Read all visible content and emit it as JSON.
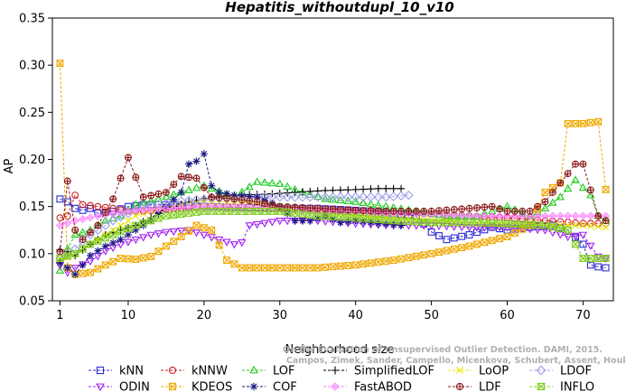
{
  "chart_data": {
    "type": "line",
    "title": "Hepatitis_withoutdupl_10_v10",
    "xlabel": "Neighborhood size",
    "ylabel": "AP",
    "xlim": [
      0,
      74
    ],
    "ylim": [
      0.05,
      0.35
    ],
    "xticks": [
      1,
      10,
      20,
      30,
      40,
      50,
      60,
      70
    ],
    "yticks": [
      "0.05",
      "0.10",
      "0.15",
      "0.20",
      "0.25",
      "0.30",
      "0.35"
    ],
    "grid": false,
    "legend_position": "bottom",
    "watermark": [
      "Campos, Zimek, Sander, Campello, Micenkova, Schubert, Assent, Houle",
      "On the Evaluation of Unsupervised Outlier Detection. DAMI, 2015."
    ],
    "series": [
      {
        "name": "kNN",
        "color": "#2a2ad6",
        "marker": "square",
        "points": [
          [
            1,
            0.158
          ],
          [
            2,
            0.155
          ],
          [
            3,
            0.148
          ],
          [
            4,
            0.146
          ],
          [
            5,
            0.148
          ],
          [
            6,
            0.143
          ],
          [
            8,
            0.145
          ],
          [
            10,
            0.15
          ],
          [
            12,
            0.152
          ],
          [
            15,
            0.152
          ],
          [
            20,
            0.15
          ],
          [
            25,
            0.149
          ],
          [
            30,
            0.148
          ],
          [
            35,
            0.148
          ],
          [
            40,
            0.146
          ],
          [
            45,
            0.143
          ],
          [
            48,
            0.14
          ],
          [
            50,
            0.123
          ],
          [
            52,
            0.115
          ],
          [
            55,
            0.12
          ],
          [
            58,
            0.128
          ],
          [
            60,
            0.125
          ],
          [
            63,
            0.128
          ],
          [
            66,
            0.13
          ],
          [
            68,
            0.125
          ],
          [
            70,
            0.11
          ],
          [
            71,
            0.088
          ],
          [
            72,
            0.086
          ],
          [
            73,
            0.085
          ]
        ]
      },
      {
        "name": "kNNW",
        "color": "#cc2222",
        "marker": "circle",
        "points": [
          [
            1,
            0.138
          ],
          [
            2,
            0.14
          ],
          [
            3,
            0.162
          ],
          [
            4,
            0.152
          ],
          [
            6,
            0.15
          ],
          [
            8,
            0.148
          ],
          [
            10,
            0.145
          ],
          [
            12,
            0.145
          ],
          [
            15,
            0.147
          ],
          [
            20,
            0.15
          ],
          [
            25,
            0.15
          ],
          [
            30,
            0.148
          ],
          [
            35,
            0.146
          ],
          [
            40,
            0.145
          ],
          [
            45,
            0.145
          ],
          [
            50,
            0.142
          ],
          [
            55,
            0.14
          ],
          [
            60,
            0.138
          ],
          [
            65,
            0.135
          ],
          [
            70,
            0.132
          ],
          [
            73,
            0.132
          ]
        ]
      },
      {
        "name": "LOF",
        "color": "#1fcc1f",
        "marker": "triangle",
        "points": [
          [
            1,
            0.082
          ],
          [
            2,
            0.105
          ],
          [
            3,
            0.12
          ],
          [
            5,
            0.125
          ],
          [
            7,
            0.135
          ],
          [
            9,
            0.14
          ],
          [
            11,
            0.152
          ],
          [
            14,
            0.158
          ],
          [
            17,
            0.165
          ],
          [
            20,
            0.172
          ],
          [
            24,
            0.16
          ],
          [
            27,
            0.176
          ],
          [
            30,
            0.174
          ],
          [
            33,
            0.165
          ],
          [
            36,
            0.158
          ],
          [
            40,
            0.155
          ],
          [
            44,
            0.15
          ],
          [
            48,
            0.145
          ],
          [
            52,
            0.14
          ],
          [
            56,
            0.14
          ],
          [
            60,
            0.15
          ],
          [
            63,
            0.14
          ],
          [
            65,
            0.148
          ],
          [
            67,
            0.16
          ],
          [
            69,
            0.178
          ],
          [
            71,
            0.162
          ],
          [
            72,
            0.14
          ],
          [
            73,
            0.135
          ]
        ]
      },
      {
        "name": "SimplifiedLOF",
        "color": "#000000",
        "marker": "plus",
        "points": [
          [
            1,
            0.104
          ],
          [
            2,
            0.102
          ],
          [
            3,
            0.098
          ],
          [
            5,
            0.11
          ],
          [
            7,
            0.12
          ],
          [
            9,
            0.125
          ],
          [
            11,
            0.13
          ],
          [
            13,
            0.138
          ],
          [
            15,
            0.148
          ],
          [
            18,
            0.155
          ],
          [
            21,
            0.16
          ],
          [
            24,
            0.162
          ],
          [
            28,
            0.163
          ],
          [
            32,
            0.165
          ],
          [
            36,
            0.167
          ],
          [
            40,
            0.168
          ],
          [
            43,
            0.169
          ],
          [
            46,
            0.169
          ]
        ]
      },
      {
        "name": "LoOP",
        "color": "#e6e600",
        "marker": "cross",
        "points": [
          [
            1,
            0.092
          ],
          [
            3,
            0.1
          ],
          [
            5,
            0.11
          ],
          [
            8,
            0.125
          ],
          [
            11,
            0.14
          ],
          [
            15,
            0.15
          ],
          [
            20,
            0.155
          ],
          [
            25,
            0.155
          ],
          [
            30,
            0.15
          ],
          [
            35,
            0.145
          ],
          [
            40,
            0.14
          ],
          [
            45,
            0.138
          ],
          [
            50,
            0.135
          ],
          [
            55,
            0.133
          ],
          [
            60,
            0.13
          ],
          [
            65,
            0.13
          ],
          [
            70,
            0.13
          ],
          [
            73,
            0.128
          ]
        ]
      },
      {
        "name": "LDOF",
        "color": "#9e9ee6",
        "marker": "diamond",
        "points": [
          [
            1,
            0.095
          ],
          [
            3,
            0.105
          ],
          [
            5,
            0.12
          ],
          [
            8,
            0.135
          ],
          [
            12,
            0.15
          ],
          [
            16,
            0.155
          ],
          [
            20,
            0.158
          ],
          [
            25,
            0.16
          ],
          [
            30,
            0.16
          ],
          [
            35,
            0.16
          ],
          [
            40,
            0.16
          ],
          [
            44,
            0.16
          ],
          [
            47,
            0.162
          ]
        ]
      },
      {
        "name": "ODIN",
        "color": "#a020f0",
        "marker": "triangle-down",
        "points": [
          [
            1,
            0.088
          ],
          [
            2,
            0.08
          ],
          [
            3,
            0.085
          ],
          [
            5,
            0.092
          ],
          [
            7,
            0.103
          ],
          [
            9,
            0.11
          ],
          [
            11,
            0.115
          ],
          [
            13,
            0.12
          ],
          [
            15,
            0.123
          ],
          [
            18,
            0.125
          ],
          [
            20,
            0.12
          ],
          [
            22,
            0.115
          ],
          [
            24,
            0.11
          ],
          [
            25,
            0.112
          ],
          [
            26,
            0.13
          ],
          [
            30,
            0.135
          ],
          [
            35,
            0.135
          ],
          [
            40,
            0.132
          ],
          [
            45,
            0.13
          ],
          [
            50,
            0.13
          ],
          [
            55,
            0.128
          ],
          [
            60,
            0.128
          ],
          [
            65,
            0.125
          ],
          [
            68,
            0.118
          ],
          [
            70,
            0.12
          ],
          [
            72,
            0.097
          ],
          [
            73,
            0.095
          ]
        ]
      },
      {
        "name": "KDEOS",
        "color": "#f0a800",
        "marker": "square-x",
        "points": [
          [
            1,
            0.302
          ],
          [
            2,
            0.085
          ],
          [
            3,
            0.078
          ],
          [
            5,
            0.08
          ],
          [
            7,
            0.088
          ],
          [
            9,
            0.095
          ],
          [
            11,
            0.094
          ],
          [
            13,
            0.097
          ],
          [
            15,
            0.108
          ],
          [
            17,
            0.118
          ],
          [
            19,
            0.13
          ],
          [
            21,
            0.125
          ],
          [
            23,
            0.093
          ],
          [
            25,
            0.085
          ],
          [
            30,
            0.085
          ],
          [
            35,
            0.085
          ],
          [
            40,
            0.088
          ],
          [
            45,
            0.093
          ],
          [
            50,
            0.1
          ],
          [
            55,
            0.108
          ],
          [
            60,
            0.118
          ],
          [
            63,
            0.13
          ],
          [
            65,
            0.165
          ],
          [
            67,
            0.175
          ],
          [
            68,
            0.238
          ],
          [
            70,
            0.238
          ],
          [
            72,
            0.24
          ],
          [
            73,
            0.168
          ]
        ]
      },
      {
        "name": "COF",
        "color": "#1a1a80",
        "marker": "asterisk",
        "points": [
          [
            1,
            0.09
          ],
          [
            2,
            0.085
          ],
          [
            3,
            0.078
          ],
          [
            5,
            0.098
          ],
          [
            7,
            0.108
          ],
          [
            9,
            0.115
          ],
          [
            11,
            0.125
          ],
          [
            13,
            0.135
          ],
          [
            15,
            0.15
          ],
          [
            17,
            0.165
          ],
          [
            18,
            0.195
          ],
          [
            19,
            0.198
          ],
          [
            20,
            0.206
          ],
          [
            21,
            0.172
          ],
          [
            22,
            0.165
          ],
          [
            24,
            0.162
          ],
          [
            27,
            0.16
          ],
          [
            30,
            0.15
          ],
          [
            32,
            0.135
          ],
          [
            34,
            0.135
          ],
          [
            36,
            0.14
          ],
          [
            38,
            0.133
          ],
          [
            40,
            0.135
          ],
          [
            43,
            0.132
          ],
          [
            46,
            0.13
          ]
        ]
      },
      {
        "name": "FastABOD",
        "color": "#ff80ff",
        "marker": "diamond-filled",
        "points": [
          [
            1,
            0.13
          ],
          [
            3,
            0.135
          ],
          [
            6,
            0.14
          ],
          [
            10,
            0.145
          ],
          [
            15,
            0.148
          ],
          [
            20,
            0.15
          ],
          [
            25,
            0.15
          ],
          [
            30,
            0.148
          ],
          [
            35,
            0.146
          ],
          [
            40,
            0.145
          ],
          [
            45,
            0.143
          ],
          [
            50,
            0.142
          ],
          [
            55,
            0.14
          ],
          [
            60,
            0.14
          ],
          [
            65,
            0.14
          ],
          [
            70,
            0.14
          ],
          [
            73,
            0.14
          ]
        ]
      },
      {
        "name": "LDF",
        "color": "#8b1a1a",
        "marker": "circle-plus",
        "points": [
          [
            1,
            0.102
          ],
          [
            2,
            0.177
          ],
          [
            3,
            0.125
          ],
          [
            4,
            0.115
          ],
          [
            6,
            0.13
          ],
          [
            8,
            0.158
          ],
          [
            10,
            0.202
          ],
          [
            12,
            0.16
          ],
          [
            15,
            0.165
          ],
          [
            17,
            0.182
          ],
          [
            19,
            0.18
          ],
          [
            21,
            0.16
          ],
          [
            24,
            0.158
          ],
          [
            27,
            0.155
          ],
          [
            30,
            0.15
          ],
          [
            35,
            0.148
          ],
          [
            40,
            0.146
          ],
          [
            45,
            0.145
          ],
          [
            50,
            0.145
          ],
          [
            55,
            0.148
          ],
          [
            58,
            0.15
          ],
          [
            60,
            0.145
          ],
          [
            63,
            0.145
          ],
          [
            65,
            0.155
          ],
          [
            67,
            0.175
          ],
          [
            69,
            0.195
          ],
          [
            70,
            0.195
          ],
          [
            72,
            0.14
          ],
          [
            73,
            0.135
          ]
        ]
      },
      {
        "name": "INFLO",
        "color": "#80cc20",
        "marker": "hourglass",
        "points": [
          [
            1,
            0.095
          ],
          [
            3,
            0.1
          ],
          [
            5,
            0.11
          ],
          [
            8,
            0.12
          ],
          [
            11,
            0.13
          ],
          [
            15,
            0.14
          ],
          [
            20,
            0.145
          ],
          [
            25,
            0.145
          ],
          [
            30,
            0.145
          ],
          [
            35,
            0.14
          ],
          [
            40,
            0.138
          ],
          [
            45,
            0.135
          ],
          [
            50,
            0.133
          ],
          [
            55,
            0.133
          ],
          [
            60,
            0.132
          ],
          [
            65,
            0.13
          ],
          [
            68,
            0.125
          ],
          [
            70,
            0.095
          ],
          [
            72,
            0.095
          ],
          [
            73,
            0.095
          ]
        ]
      }
    ]
  }
}
